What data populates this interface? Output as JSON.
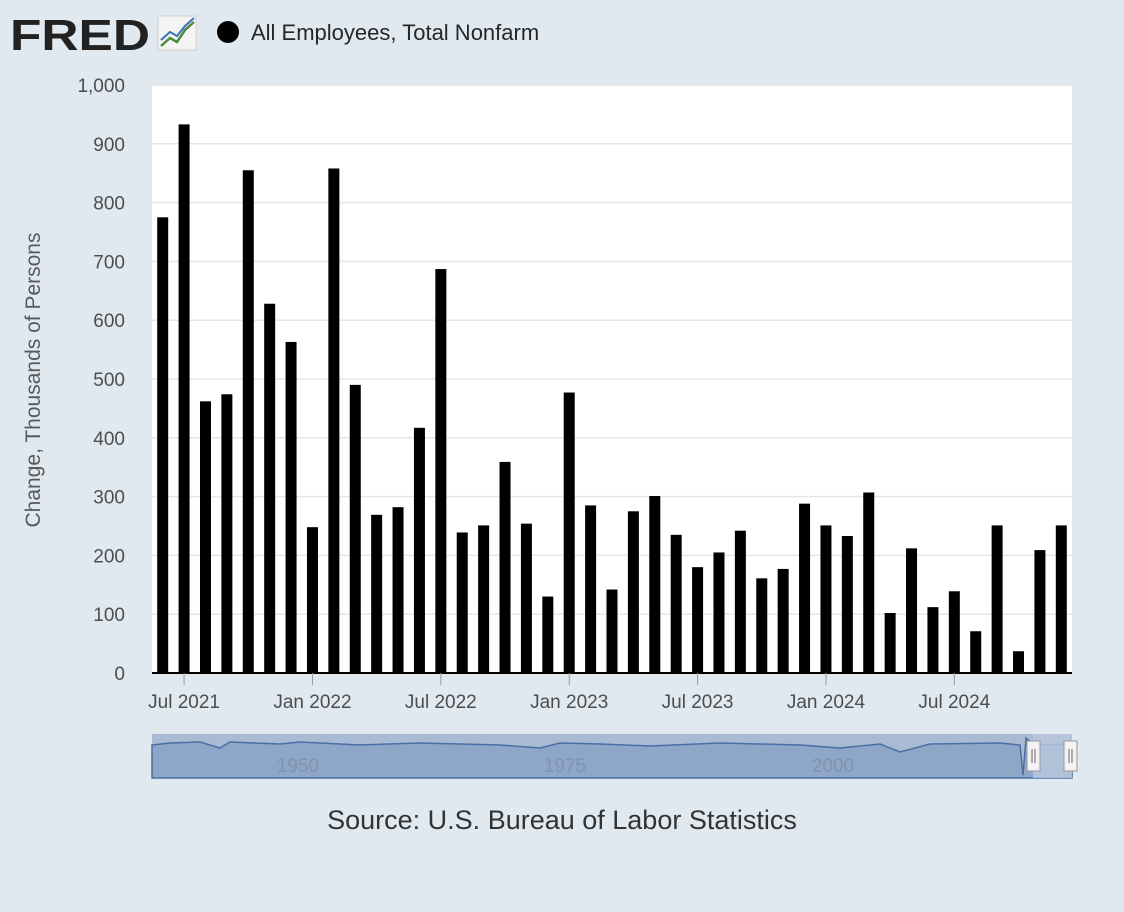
{
  "logo_text": "FRED",
  "legend": {
    "label": "All Employees, Total Nonfarm",
    "color": "#000000"
  },
  "source_text": "Source: U.S. Bureau of Labor Statistics",
  "colors": {
    "background": "#e1e9f0",
    "plot_background": "#ffffff",
    "bar": "#000000",
    "grid": "#e6e6e6",
    "navigator": "#9eb2cf"
  },
  "navigator": {
    "labels": [
      "1950",
      "1975",
      "2000"
    ]
  },
  "chart_data": {
    "type": "bar",
    "ylabel": "Change, Thousands of Persons",
    "xlabel": "",
    "ylim": [
      0,
      1000
    ],
    "yticks": [
      0,
      100,
      200,
      300,
      400,
      500,
      600,
      700,
      800,
      900,
      "1,000"
    ],
    "xtick_labels": [
      "Jul 2021",
      "Jan 2022",
      "Jul 2022",
      "Jan 2023",
      "Jul 2023",
      "Jan 2024",
      "Jul 2024"
    ],
    "grid": true,
    "legend_position": "top-left",
    "categories": [
      "Jun 2021",
      "Jul 2021",
      "Aug 2021",
      "Sep 2021",
      "Oct 2021",
      "Nov 2021",
      "Dec 2021",
      "Jan 2022",
      "Feb 2022",
      "Mar 2022",
      "Apr 2022",
      "May 2022",
      "Jun 2022",
      "Jul 2022",
      "Aug 2022",
      "Sep 2022",
      "Oct 2022",
      "Nov 2022",
      "Dec 2022",
      "Jan 2023",
      "Feb 2023",
      "Mar 2023",
      "Apr 2023",
      "May 2023",
      "Jun 2023",
      "Jul 2023",
      "Aug 2023",
      "Sep 2023",
      "Oct 2023",
      "Nov 2023",
      "Dec 2023",
      "Jan 2024",
      "Feb 2024",
      "Mar 2024",
      "Apr 2024",
      "May 2024",
      "Jun 2024",
      "Jul 2024",
      "Aug 2024",
      "Sep 2024",
      "Oct 2024",
      "Nov 2024",
      "Dec 2024"
    ],
    "series": [
      {
        "name": "All Employees, Total Nonfarm",
        "values": [
          775,
          933,
          462,
          474,
          855,
          628,
          563,
          248,
          858,
          490,
          269,
          282,
          417,
          687,
          239,
          251,
          359,
          254,
          130,
          477,
          285,
          142,
          275,
          301,
          235,
          180,
          205,
          242,
          161,
          177,
          288,
          251,
          233,
          307,
          102,
          212,
          112,
          139,
          71,
          251,
          37,
          209,
          251
        ]
      }
    ]
  }
}
